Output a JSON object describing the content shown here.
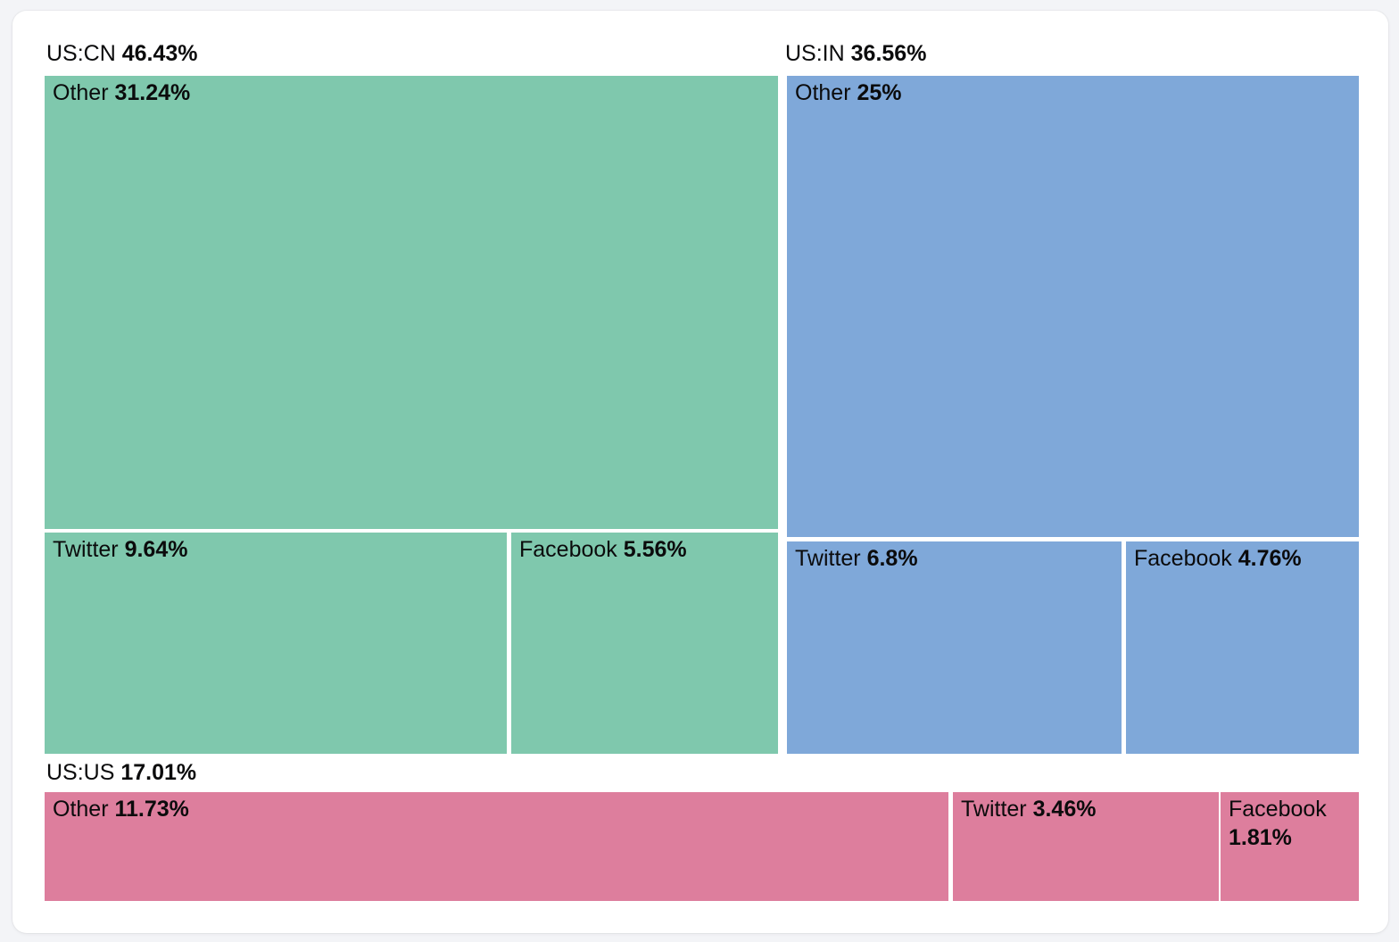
{
  "treemap": {
    "groups": [
      {
        "label": "US:CN",
        "pct": "46.43%",
        "color": "#7fc8ad",
        "tiles": [
          {
            "label": "Other",
            "pct": "31.24%"
          },
          {
            "label": "Twitter",
            "pct": "9.64%"
          },
          {
            "label": "Facebook",
            "pct": "5.56%"
          }
        ]
      },
      {
        "label": "US:IN",
        "pct": "36.56%",
        "color": "#7fa8d9",
        "tiles": [
          {
            "label": "Other",
            "pct": "25%"
          },
          {
            "label": "Twitter",
            "pct": "6.8%"
          },
          {
            "label": "Facebook",
            "pct": "4.76%"
          }
        ]
      },
      {
        "label": "US:US",
        "pct": "17.01%",
        "color": "#dd7e9d",
        "tiles": [
          {
            "label": "Other",
            "pct": "11.73%"
          },
          {
            "label": "Twitter",
            "pct": "3.46%"
          },
          {
            "label": "Facebook",
            "pct": "1.81%"
          }
        ]
      }
    ]
  },
  "chart_data": {
    "type": "treemap",
    "unit": "%",
    "legend": "none",
    "groups": [
      {
        "name": "US:CN",
        "value": 46.43,
        "color": "#7fc8ad",
        "children": [
          {
            "name": "Other",
            "value": 31.24
          },
          {
            "name": "Twitter",
            "value": 9.64
          },
          {
            "name": "Facebook",
            "value": 5.56
          }
        ]
      },
      {
        "name": "US:IN",
        "value": 36.56,
        "color": "#7fa8d9",
        "children": [
          {
            "name": "Other",
            "value": 25
          },
          {
            "name": "Twitter",
            "value": 6.8
          },
          {
            "name": "Facebook",
            "value": 4.76
          }
        ]
      },
      {
        "name": "US:US",
        "value": 17.01,
        "color": "#dd7e9d",
        "children": [
          {
            "name": "Other",
            "value": 11.73
          },
          {
            "name": "Twitter",
            "value": 3.46
          },
          {
            "name": "Facebook",
            "value": 1.81
          }
        ]
      }
    ]
  }
}
